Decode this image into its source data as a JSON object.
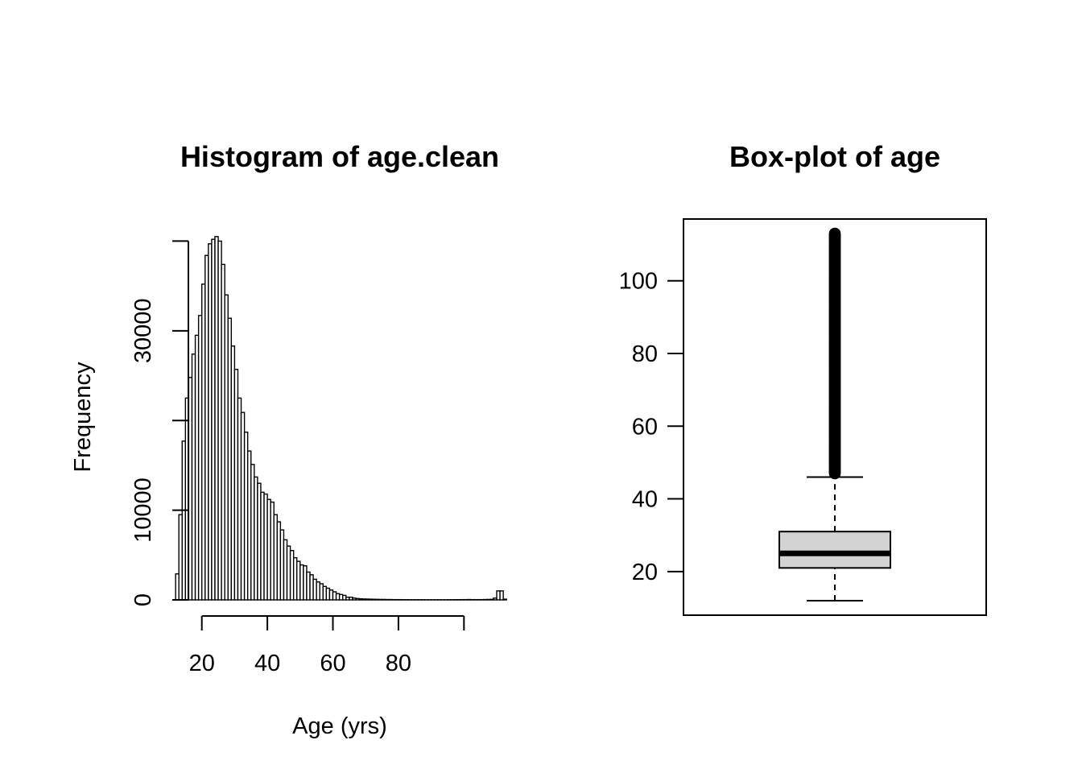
{
  "chart_data": [
    {
      "type": "histogram",
      "title": "Histogram of age.clean",
      "xlabel": "Age (yrs)",
      "ylabel": "Frequency",
      "xlim": [
        10,
        110
      ],
      "ylim": [
        0,
        43000
      ],
      "x_ticks": [
        20,
        40,
        60,
        80,
        100
      ],
      "x_tick_labels": [
        "20",
        "40",
        "60",
        "80",
        ""
      ],
      "y_ticks": [
        0,
        10000,
        20000,
        30000,
        40000
      ],
      "y_tick_labels": [
        "0",
        "10000",
        "",
        "30000",
        ""
      ],
      "bin_width": 1,
      "bin_starts": [
        12,
        13,
        14,
        15,
        16,
        17,
        18,
        19,
        20,
        21,
        22,
        23,
        24,
        25,
        26,
        27,
        28,
        29,
        30,
        31,
        32,
        33,
        34,
        35,
        36,
        37,
        38,
        39,
        40,
        41,
        42,
        43,
        44,
        45,
        46,
        47,
        48,
        49,
        50,
        51,
        52,
        53,
        54,
        55,
        56,
        57,
        58,
        59,
        60,
        61,
        62,
        63,
        64,
        65,
        66,
        67,
        68,
        69,
        70,
        71,
        72,
        73,
        74,
        75,
        76,
        77,
        78,
        79,
        80,
        81,
        82,
        83,
        84,
        85,
        86,
        87,
        88,
        89,
        90,
        91,
        92,
        93,
        94,
        95,
        96,
        97,
        98,
        99,
        100,
        101,
        102,
        103,
        104,
        105,
        106,
        107,
        108,
        109,
        110,
        111,
        112
      ],
      "values": [
        2900,
        9500,
        17700,
        22500,
        24800,
        27400,
        29500,
        31700,
        35200,
        38400,
        39700,
        40200,
        40500,
        40000,
        37400,
        34000,
        31400,
        28300,
        25700,
        22500,
        20900,
        18700,
        16600,
        15100,
        13700,
        13000,
        12000,
        11800,
        11200,
        10900,
        9500,
        8700,
        7800,
        6700,
        6000,
        5500,
        4700,
        4300,
        3900,
        3800,
        3100,
        2800,
        2300,
        2000,
        1800,
        1500,
        1300,
        1100,
        900,
        700,
        600,
        500,
        300,
        300,
        200,
        150,
        120,
        100,
        90,
        80,
        70,
        60,
        50,
        50,
        40,
        40,
        30,
        30,
        30,
        25,
        25,
        20,
        20,
        20,
        20,
        20,
        15,
        15,
        15,
        15,
        15,
        15,
        15,
        20,
        20,
        25,
        25,
        30,
        30,
        40,
        30,
        30,
        30,
        30,
        40,
        50,
        60,
        200,
        1000,
        1000,
        80
      ]
    },
    {
      "type": "boxplot",
      "title": "Box-plot of age",
      "ylim": [
        8,
        117
      ],
      "y_ticks": [
        20,
        40,
        60,
        80,
        100
      ],
      "y_tick_labels": [
        "20",
        "40",
        "60",
        "80",
        "100"
      ],
      "whisker_low": 12,
      "q1": 21,
      "median": 25,
      "q3": 31,
      "whisker_high": 46,
      "outliers": [
        47,
        48,
        49,
        50,
        51,
        52,
        53,
        54,
        55,
        56,
        57,
        58,
        59,
        60,
        61,
        62,
        63,
        64,
        65,
        66,
        67,
        68,
        69,
        70,
        71,
        72,
        73,
        74,
        75,
        76,
        77,
        78,
        79,
        80,
        81,
        82,
        83,
        84,
        85,
        86,
        87,
        88,
        89,
        90,
        91,
        92,
        93,
        94,
        95,
        96,
        97,
        98,
        99,
        100,
        101,
        102,
        103,
        104,
        105,
        106,
        107,
        108,
        109,
        110,
        111,
        112,
        113
      ],
      "box_color": "#d3d3d3"
    }
  ]
}
